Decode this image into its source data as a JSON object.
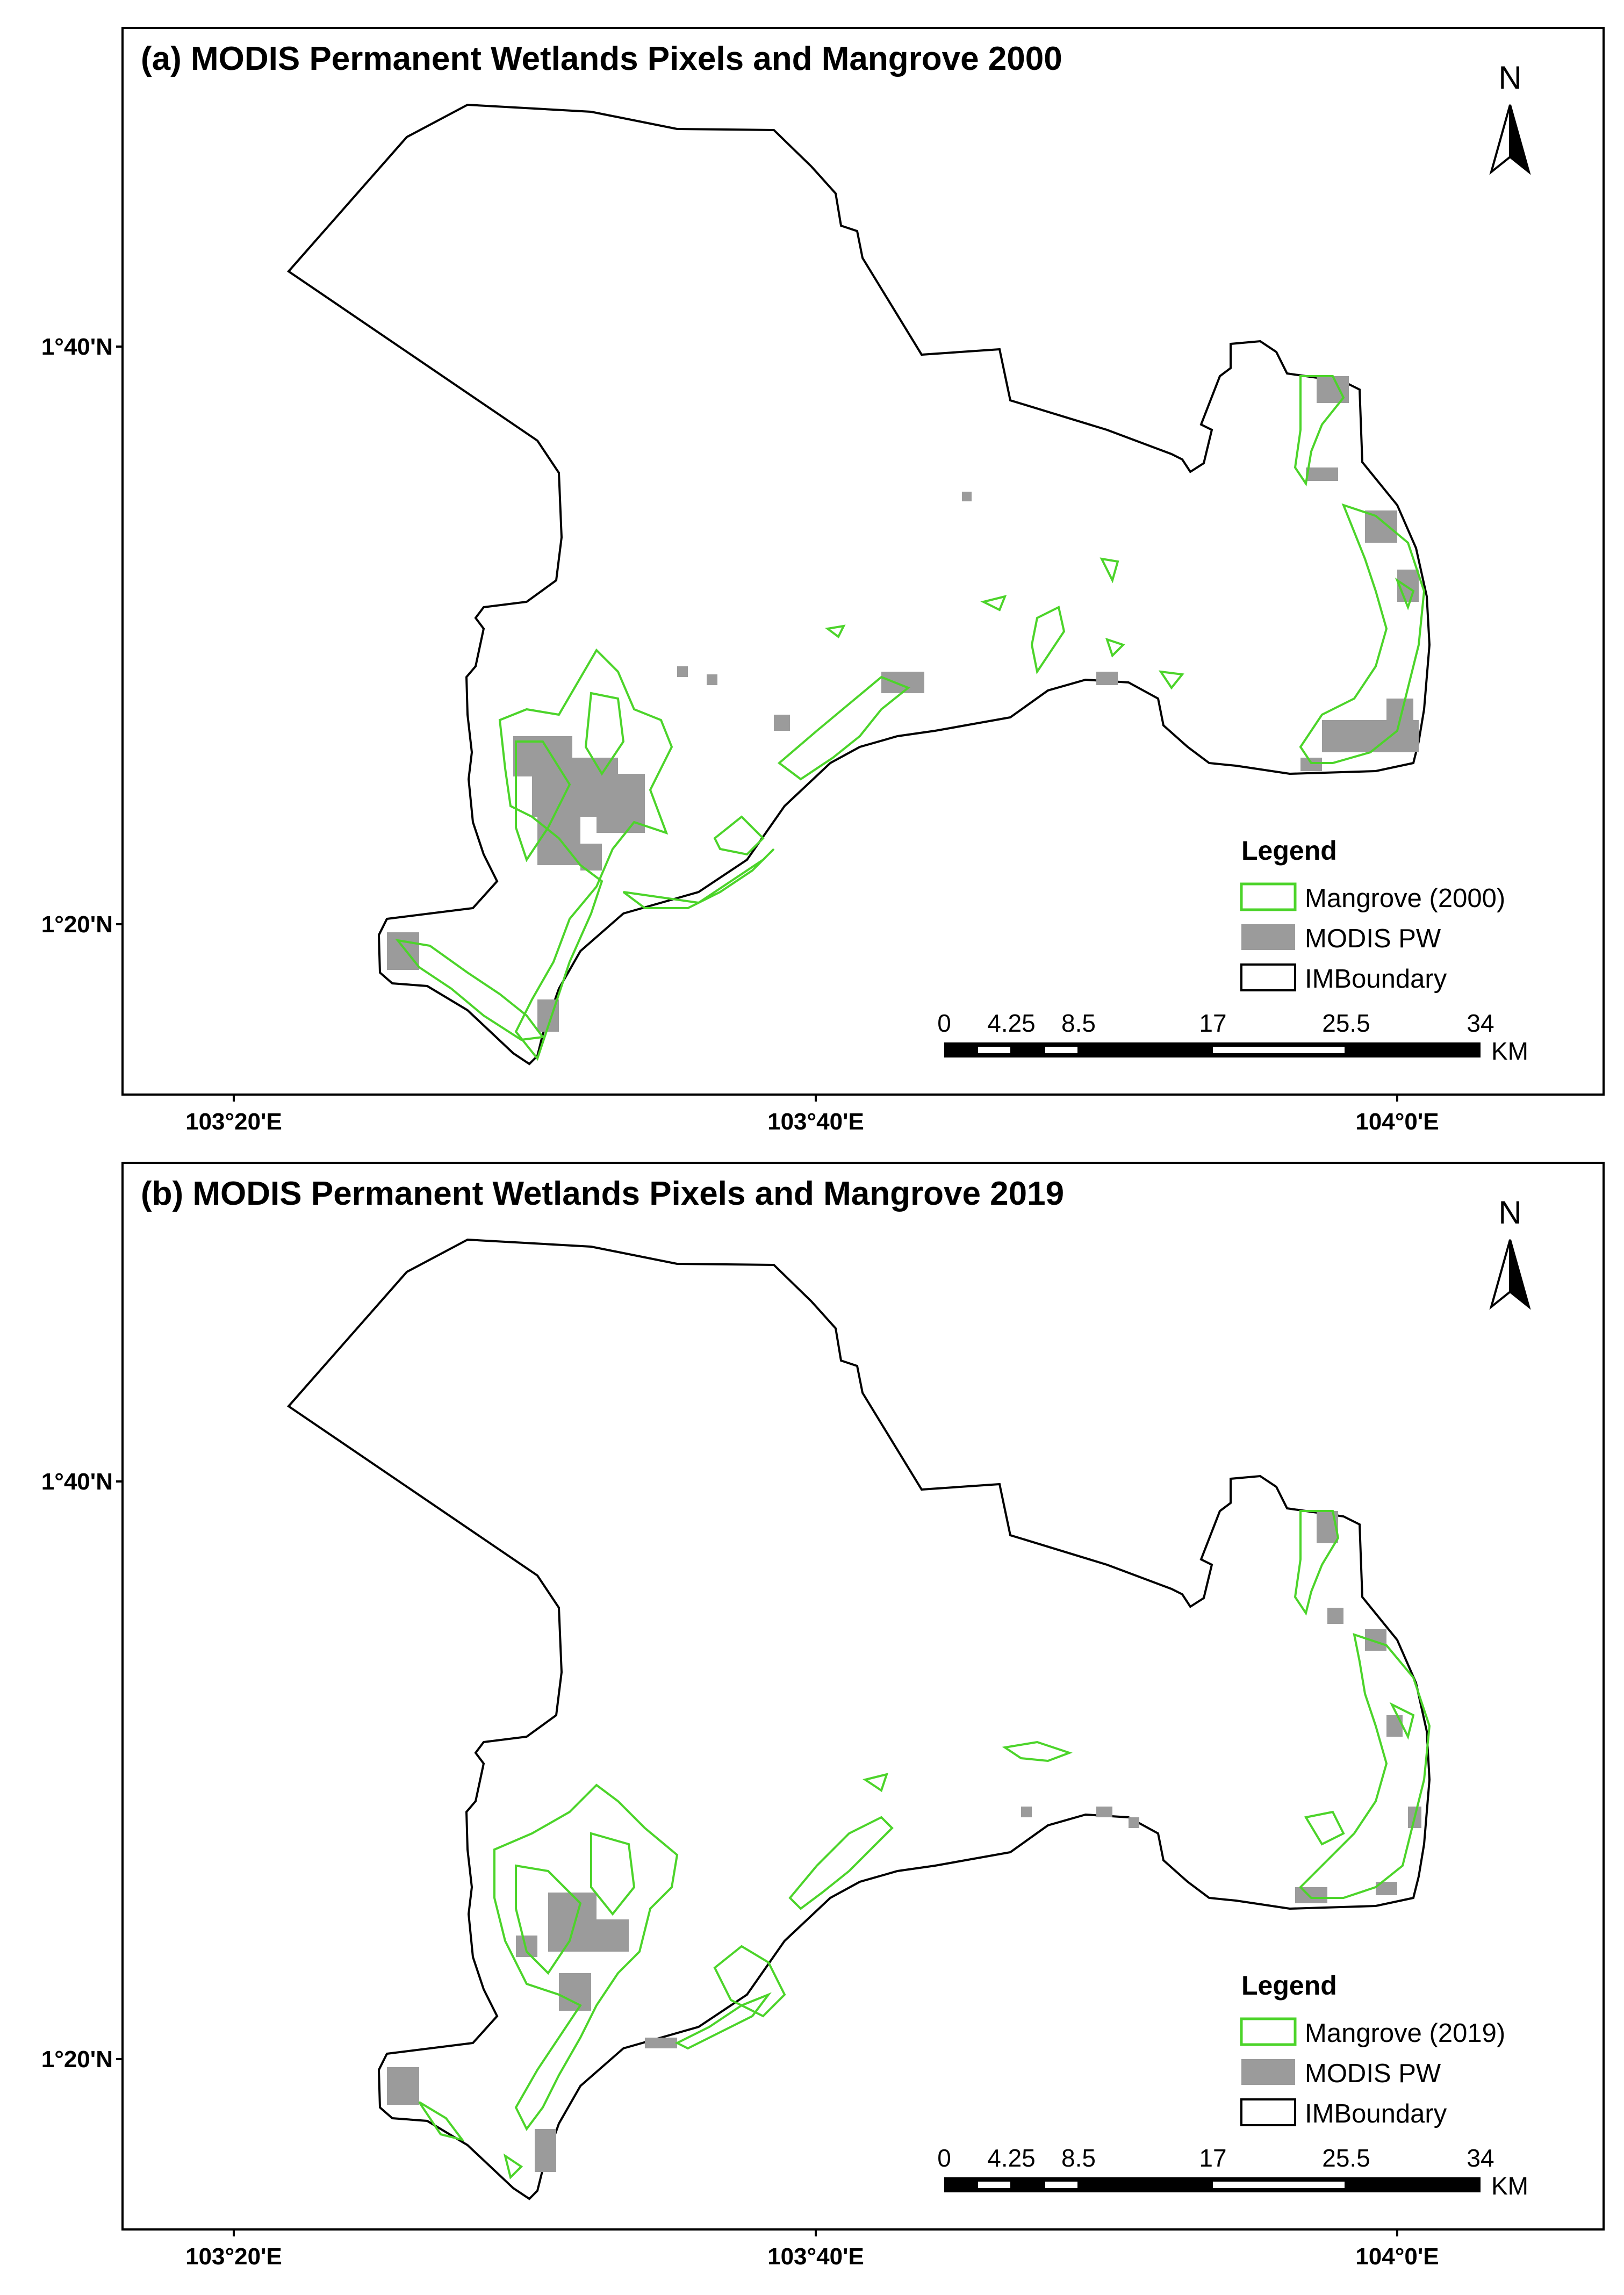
{
  "panels": [
    {
      "id": "a",
      "title": "(a) MODIS Permanent Wetlands Pixels and Mangrove 2000",
      "north_label": "N",
      "lat_ticks": [
        "1°40'N",
        "1°20'N"
      ],
      "lon_ticks": [
        "103°20'E",
        "103°40'E",
        "104°0'E"
      ],
      "legend": {
        "heading": "Legend",
        "items": [
          {
            "label": "Mangrove (2000)",
            "color": "#4cd42a"
          },
          {
            "label": "MODIS PW",
            "color": "#9b9b9b"
          },
          {
            "label": "IMBoundary",
            "color": "#000000"
          }
        ]
      },
      "scale": {
        "labels": [
          "0",
          "4.25",
          "8.5",
          "17",
          "25.5",
          "34"
        ],
        "unit": "KM"
      }
    },
    {
      "id": "b",
      "title": "(b) MODIS Permanent Wetlands Pixels and Mangrove 2019",
      "north_label": "N",
      "lat_ticks": [
        "1°40'N",
        "1°20'N"
      ],
      "lon_ticks": [
        "103°20'E",
        "103°40'E",
        "104°0'E"
      ],
      "legend": {
        "heading": "Legend",
        "items": [
          {
            "label": "Mangrove (2019)",
            "color": "#4cd42a"
          },
          {
            "label": "MODIS PW",
            "color": "#9b9b9b"
          },
          {
            "label": "IMBoundary",
            "color": "#000000"
          }
        ]
      },
      "scale": {
        "labels": [
          "0",
          "4.25",
          "8.5",
          "17",
          "25.5",
          "34"
        ],
        "unit": "KM"
      }
    }
  ]
}
